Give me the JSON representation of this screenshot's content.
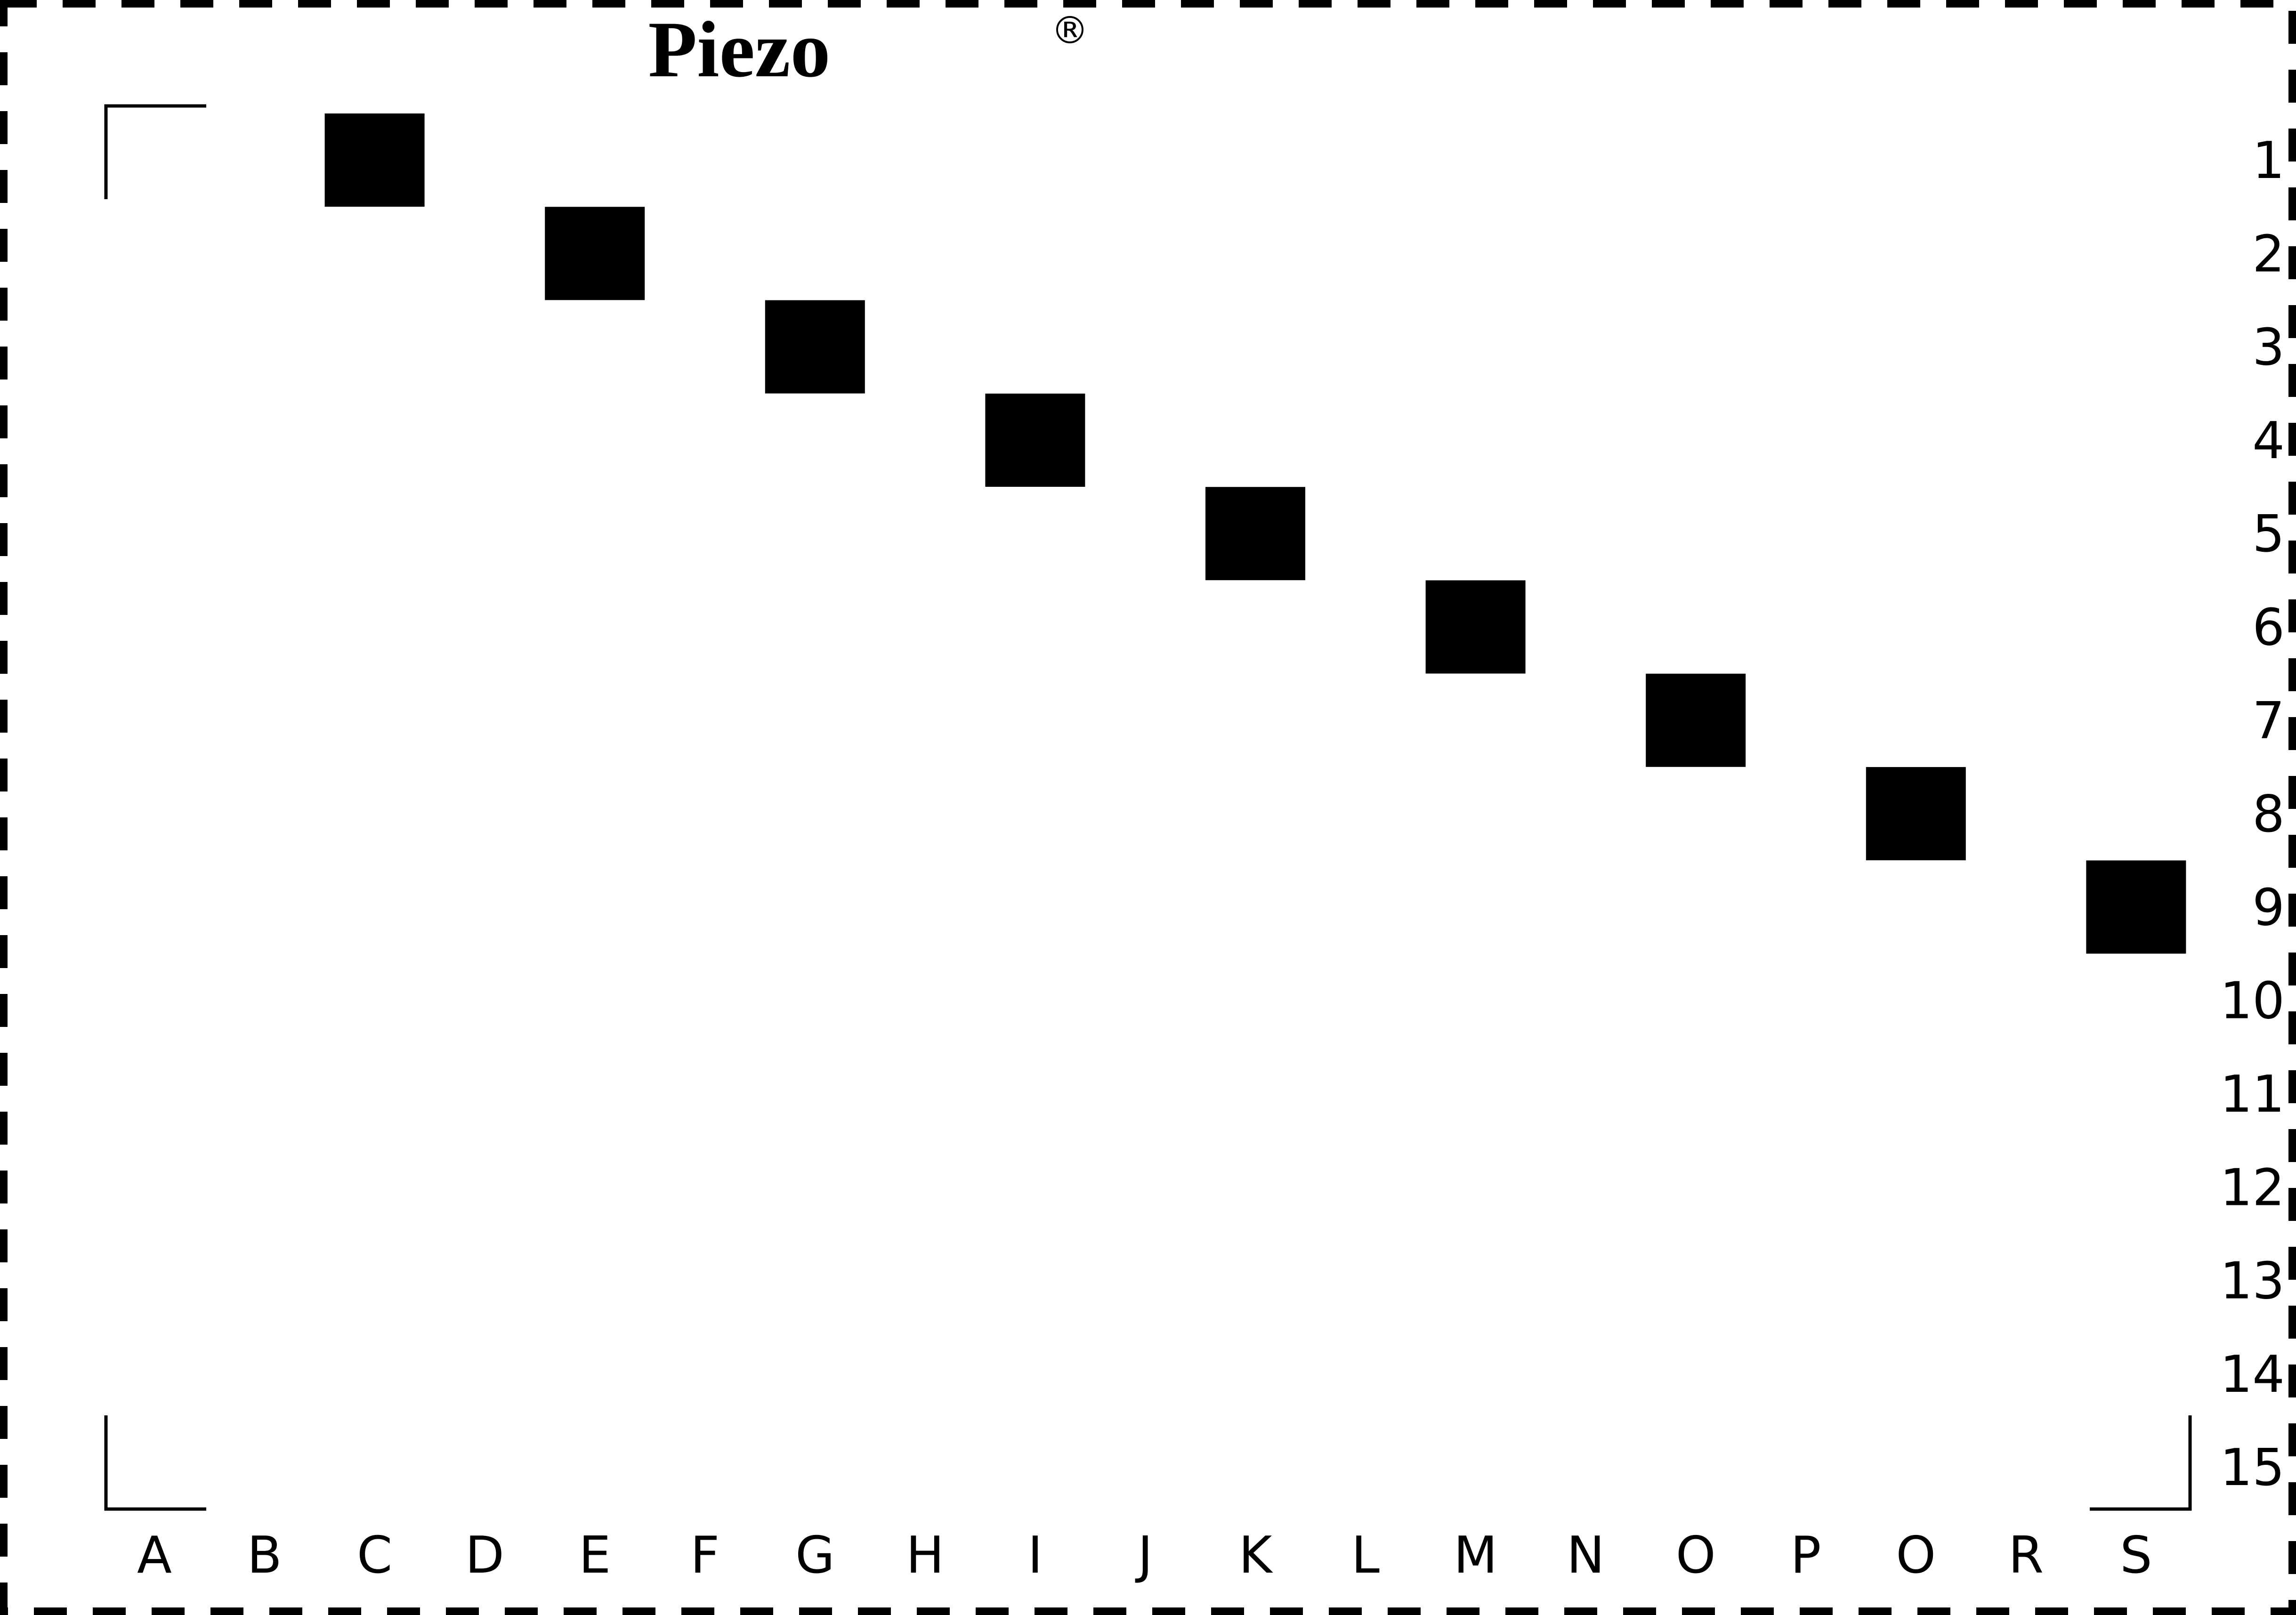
{
  "brand": {
    "name": "Piezo",
    "registered_mark": "®"
  },
  "grid": {
    "columns": [
      "A",
      "B",
      "C",
      "D",
      "E",
      "F",
      "G",
      "H",
      "I",
      "J",
      "K",
      "L",
      "M",
      "N",
      "O",
      "P",
      "O",
      "R",
      "S"
    ],
    "rows": [
      "1",
      "2",
      "3",
      "4",
      "5",
      "6",
      "7",
      "8",
      "9",
      "10",
      "11",
      "12",
      "13",
      "14",
      "15"
    ]
  },
  "patches": [
    {
      "column": 3,
      "row": 1
    },
    {
      "column": 5,
      "row": 2
    },
    {
      "column": 7,
      "row": 3
    },
    {
      "column": 9,
      "row": 4
    },
    {
      "column": 11,
      "row": 5
    },
    {
      "column": 13,
      "row": 6
    },
    {
      "column": 15,
      "row": 7
    },
    {
      "column": 17,
      "row": 8
    },
    {
      "column": 19,
      "row": 9
    }
  ],
  "colors": {
    "background": "#ffffff",
    "ink": "#000000"
  }
}
